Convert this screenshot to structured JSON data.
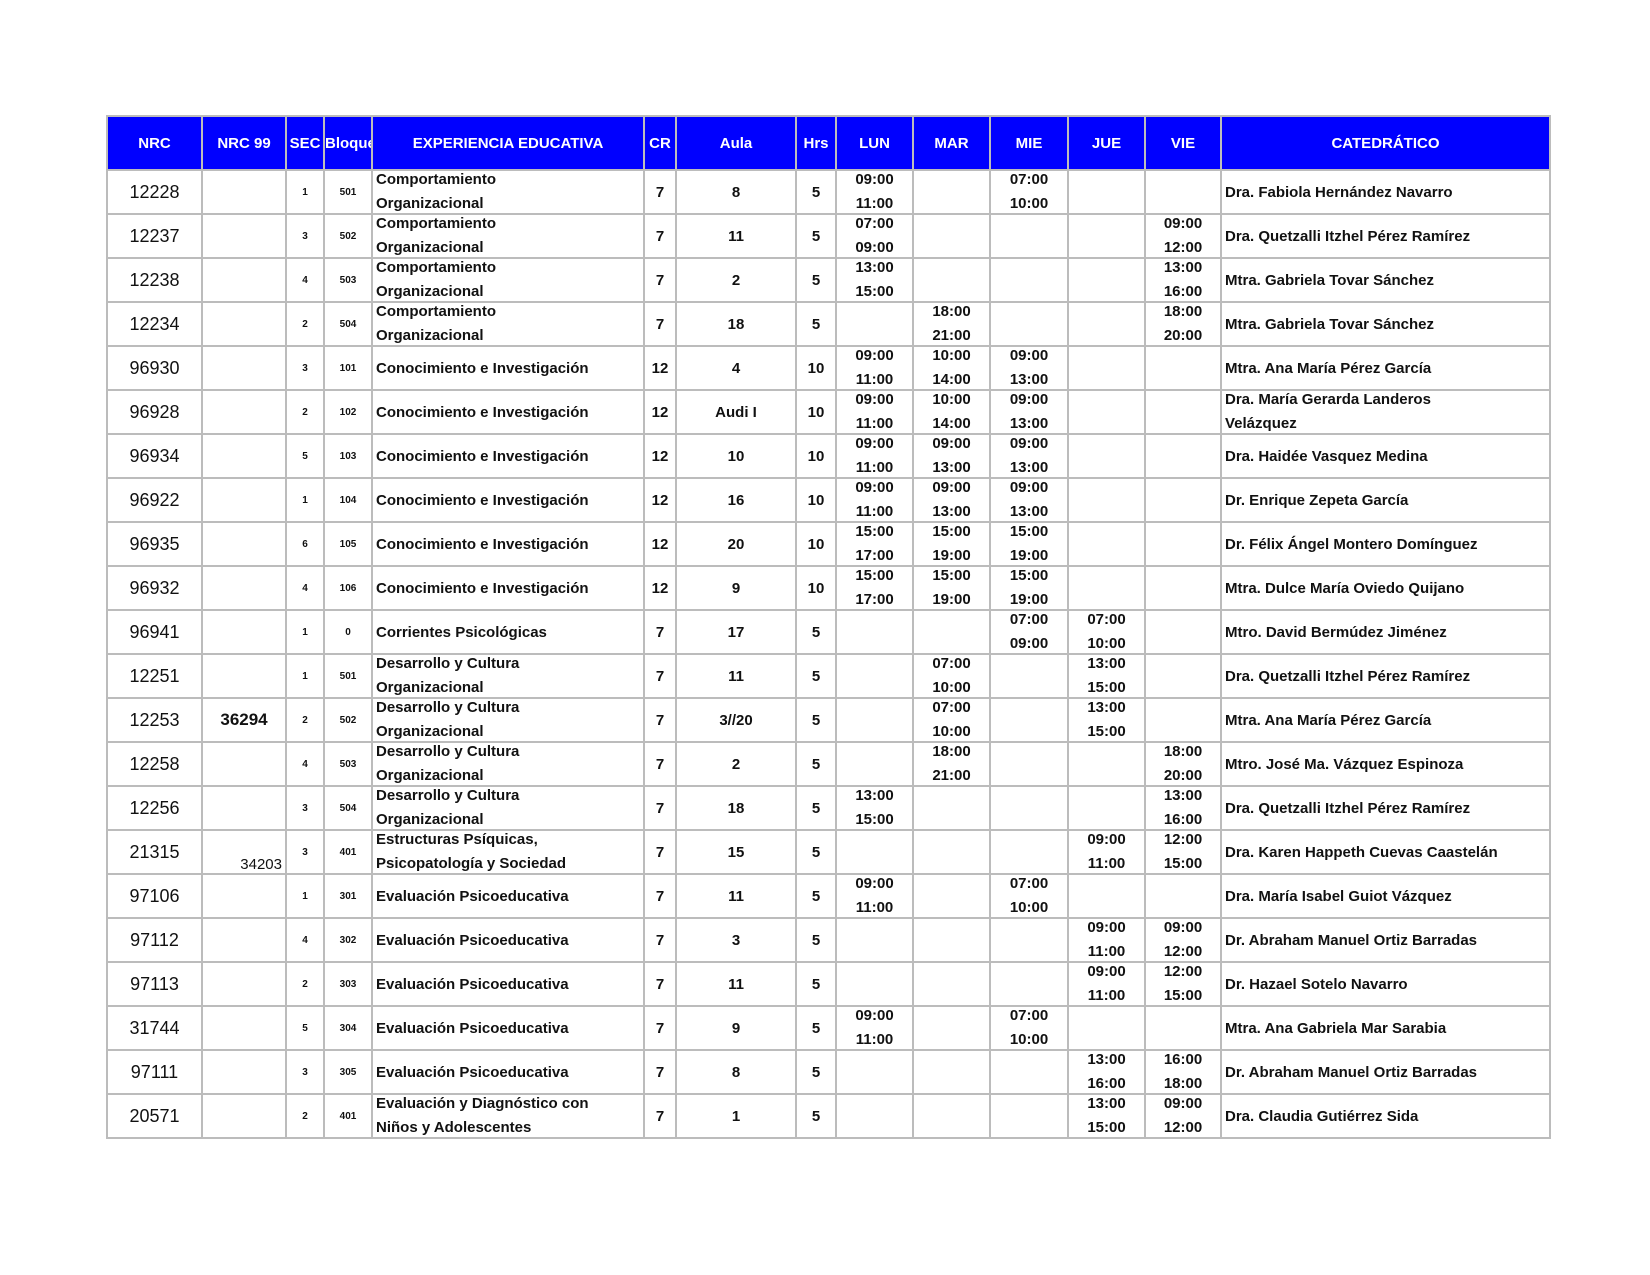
{
  "header": [
    "NRC",
    "NRC 99",
    "SEC",
    "Bloque",
    "EXPERIENCIA EDUCATIVA",
    "CR",
    "Aula",
    "Hrs",
    "LUN",
    "MAR",
    "MIE",
    "JUE",
    "VIE",
    "CATEDRÁTICO"
  ],
  "colors": {
    "header_bg": "#0000ff",
    "header_text": "#ffffff",
    "border": "#bcbcbc"
  },
  "rows": [
    {
      "nrc": "12228",
      "nrc99": "",
      "sec": "1",
      "bloque": "501",
      "exp": [
        "Comportamiento",
        "Organizacional"
      ],
      "cr": "7",
      "aula": "8",
      "hrs": "5",
      "lun": [
        "09:00",
        "11:00"
      ],
      "mar": [],
      "mie": [
        "07:00",
        "10:00"
      ],
      "jue": [],
      "vie": [],
      "cat": [
        "Dra. Fabiola Hernández Navarro"
      ]
    },
    {
      "nrc": "12237",
      "nrc99": "",
      "sec": "3",
      "bloque": "502",
      "exp": [
        "Comportamiento",
        "Organizacional"
      ],
      "cr": "7",
      "aula": "11",
      "hrs": "5",
      "lun": [
        "07:00",
        "09:00"
      ],
      "mar": [],
      "mie": [],
      "jue": [],
      "vie": [
        "09:00",
        "12:00"
      ],
      "cat": [
        "Dra. Quetzalli Itzhel Pérez Ramírez"
      ]
    },
    {
      "nrc": "12238",
      "nrc99": "",
      "sec": "4",
      "bloque": "503",
      "exp": [
        "Comportamiento",
        "Organizacional"
      ],
      "cr": "7",
      "aula": "2",
      "hrs": "5",
      "lun": [
        "13:00",
        "15:00"
      ],
      "mar": [],
      "mie": [],
      "jue": [],
      "vie": [
        "13:00",
        "16:00"
      ],
      "cat": [
        "Mtra. Gabriela Tovar Sánchez"
      ]
    },
    {
      "nrc": "12234",
      "nrc99": "",
      "sec": "2",
      "bloque": "504",
      "exp": [
        "Comportamiento",
        "Organizacional"
      ],
      "cr": "7",
      "aula": "18",
      "hrs": "5",
      "lun": [],
      "mar": [
        "18:00",
        "21:00"
      ],
      "mie": [],
      "jue": [],
      "vie": [
        "18:00",
        "20:00"
      ],
      "cat": [
        "Mtra. Gabriela Tovar Sánchez"
      ]
    },
    {
      "nrc": "96930",
      "nrc99": "",
      "sec": "3",
      "bloque": "101",
      "exp": [
        "Conocimiento e Investigación"
      ],
      "cr": "12",
      "aula": "4",
      "hrs": "10",
      "lun": [
        "09:00",
        "11:00"
      ],
      "mar": [
        "10:00",
        "14:00"
      ],
      "mie": [
        "09:00",
        "13:00"
      ],
      "jue": [],
      "vie": [],
      "cat": [
        "Mtra. Ana María Pérez García"
      ]
    },
    {
      "nrc": "96928",
      "nrc99": "",
      "sec": "2",
      "bloque": "102",
      "exp": [
        "Conocimiento e Investigación"
      ],
      "cr": "12",
      "aula": "Audi I",
      "hrs": "10",
      "lun": [
        "09:00",
        "11:00"
      ],
      "mar": [
        "10:00",
        "14:00"
      ],
      "mie": [
        "09:00",
        "13:00"
      ],
      "jue": [],
      "vie": [],
      "cat": [
        "Dra. María Gerarda Landeros",
        "Velázquez"
      ]
    },
    {
      "nrc": "96934",
      "nrc99": "",
      "sec": "5",
      "bloque": "103",
      "exp": [
        "Conocimiento e Investigación"
      ],
      "cr": "12",
      "aula": "10",
      "hrs": "10",
      "lun": [
        "09:00",
        "11:00"
      ],
      "mar": [
        "09:00",
        "13:00"
      ],
      "mie": [
        "09:00",
        "13:00"
      ],
      "jue": [],
      "vie": [],
      "cat": [
        "Dra. Haidée Vasquez Medina"
      ]
    },
    {
      "nrc": "96922",
      "nrc99": "",
      "sec": "1",
      "bloque": "104",
      "exp": [
        "Conocimiento e Investigación"
      ],
      "cr": "12",
      "aula": "16",
      "hrs": "10",
      "lun": [
        "09:00",
        "11:00"
      ],
      "mar": [
        "09:00",
        "13:00"
      ],
      "mie": [
        "09:00",
        "13:00"
      ],
      "jue": [],
      "vie": [],
      "cat": [
        "Dr. Enrique Zepeta García"
      ]
    },
    {
      "nrc": "96935",
      "nrc99": "",
      "sec": "6",
      "bloque": "105",
      "exp": [
        "Conocimiento e Investigación"
      ],
      "cr": "12",
      "aula": "20",
      "hrs": "10",
      "lun": [
        "15:00",
        "17:00"
      ],
      "mar": [
        "15:00",
        "19:00"
      ],
      "mie": [
        "15:00",
        "19:00"
      ],
      "jue": [],
      "vie": [],
      "cat": [
        "Dr. Félix Ángel Montero Domínguez"
      ]
    },
    {
      "nrc": "96932",
      "nrc99": "",
      "sec": "4",
      "bloque": "106",
      "exp": [
        "Conocimiento e Investigación"
      ],
      "cr": "12",
      "aula": "9",
      "hrs": "10",
      "lun": [
        "15:00",
        "17:00"
      ],
      "mar": [
        "15:00",
        "19:00"
      ],
      "mie": [
        "15:00",
        "19:00"
      ],
      "jue": [],
      "vie": [],
      "cat": [
        "Mtra. Dulce María Oviedo Quijano"
      ]
    },
    {
      "nrc": "96941",
      "nrc99": "",
      "sec": "1",
      "bloque": "0",
      "exp": [
        "Corrientes Psicológicas"
      ],
      "cr": "7",
      "aula": "17",
      "hrs": "5",
      "lun": [],
      "mar": [],
      "mie": [
        "07:00",
        "09:00"
      ],
      "jue": [
        "07:00",
        "10:00"
      ],
      "vie": [],
      "cat": [
        "Mtro. David Bermúdez Jiménez"
      ]
    },
    {
      "nrc": "12251",
      "nrc99": "",
      "sec": "1",
      "bloque": "501",
      "exp": [
        "Desarrollo y Cultura",
        "Organizacional"
      ],
      "cr": "7",
      "aula": "11",
      "hrs": "5",
      "lun": [],
      "mar": [
        "07:00",
        "10:00"
      ],
      "mie": [],
      "jue": [
        "13:00",
        "15:00"
      ],
      "vie": [],
      "cat": [
        "Dra. Quetzalli Itzhel Pérez Ramírez"
      ]
    },
    {
      "nrc": "12253",
      "nrc99": "36294",
      "sec": "2",
      "bloque": "502",
      "exp": [
        "Desarrollo y Cultura",
        "Organizacional"
      ],
      "cr": "7",
      "aula": "3//20",
      "hrs": "5",
      "lun": [],
      "mar": [
        "07:00",
        "10:00"
      ],
      "mie": [],
      "jue": [
        "13:00",
        "15:00"
      ],
      "vie": [],
      "cat": [
        "Mtra. Ana María Pérez García"
      ]
    },
    {
      "nrc": "12258",
      "nrc99": "",
      "sec": "4",
      "bloque": "503",
      "exp": [
        "Desarrollo y Cultura",
        "Organizacional"
      ],
      "cr": "7",
      "aula": "2",
      "hrs": "5",
      "lun": [],
      "mar": [
        "18:00",
        "21:00"
      ],
      "mie": [],
      "jue": [],
      "vie": [
        "18:00",
        "20:00"
      ],
      "cat": [
        "Mtro. José Ma. Vázquez Espinoza"
      ]
    },
    {
      "nrc": "12256",
      "nrc99": "",
      "sec": "3",
      "bloque": "504",
      "exp": [
        "Desarrollo y Cultura",
        "Organizacional"
      ],
      "cr": "7",
      "aula": "18",
      "hrs": "5",
      "lun": [
        "13:00",
        "15:00"
      ],
      "mar": [],
      "mie": [],
      "jue": [],
      "vie": [
        "13:00",
        "16:00"
      ],
      "cat": [
        "Dra. Quetzalli Itzhel Pérez Ramírez"
      ]
    },
    {
      "nrc": "21315",
      "nrc99": "34203",
      "sec": "3",
      "bloque": "401",
      "exp": [
        "Estructuras Psíquicas,",
        "Psicopatología y Sociedad"
      ],
      "cr": "7",
      "aula": "15",
      "hrs": "5",
      "lun": [],
      "mar": [],
      "mie": [],
      "jue": [
        "09:00",
        "11:00"
      ],
      "vie": [
        "12:00",
        "15:00"
      ],
      "cat": [
        "Dra. Karen Happeth Cuevas Caastelán"
      ]
    },
    {
      "nrc": "97106",
      "nrc99": "",
      "sec": "1",
      "bloque": "301",
      "exp": [
        "Evaluación Psicoeducativa"
      ],
      "cr": "7",
      "aula": "11",
      "hrs": "5",
      "lun": [
        "09:00",
        "11:00"
      ],
      "mar": [],
      "mie": [
        "07:00",
        "10:00"
      ],
      "jue": [],
      "vie": [],
      "cat": [
        "Dra. María Isabel Guiot Vázquez"
      ]
    },
    {
      "nrc": "97112",
      "nrc99": "",
      "sec": "4",
      "bloque": "302",
      "exp": [
        "Evaluación Psicoeducativa"
      ],
      "cr": "7",
      "aula": "3",
      "hrs": "5",
      "lun": [],
      "mar": [],
      "mie": [],
      "jue": [
        "09:00",
        "11:00"
      ],
      "vie": [
        "09:00",
        "12:00"
      ],
      "cat": [
        "Dr. Abraham Manuel Ortiz Barradas"
      ]
    },
    {
      "nrc": "97113",
      "nrc99": "",
      "sec": "2",
      "bloque": "303",
      "exp": [
        "Evaluación Psicoeducativa"
      ],
      "cr": "7",
      "aula": "11",
      "hrs": "5",
      "lun": [],
      "mar": [],
      "mie": [],
      "jue": [
        "09:00",
        "11:00"
      ],
      "vie": [
        "12:00",
        "15:00"
      ],
      "cat": [
        "Dr. Hazael Sotelo Navarro"
      ]
    },
    {
      "nrc": "31744",
      "nrc99": "",
      "sec": "5",
      "bloque": "304",
      "exp": [
        "Evaluación Psicoeducativa"
      ],
      "cr": "7",
      "aula": "9",
      "hrs": "5",
      "lun": [
        "09:00",
        "11:00"
      ],
      "mar": [],
      "mie": [
        "07:00",
        "10:00"
      ],
      "jue": [],
      "vie": [],
      "cat": [
        "Mtra.  Ana Gabriela Mar Sarabia"
      ]
    },
    {
      "nrc": "97111",
      "nrc99": "",
      "sec": "3",
      "bloque": "305",
      "exp": [
        "Evaluación Psicoeducativa"
      ],
      "cr": "7",
      "aula": "8",
      "hrs": "5",
      "lun": [],
      "mar": [],
      "mie": [],
      "jue": [
        "13:00",
        "16:00"
      ],
      "vie": [
        "16:00",
        "18:00"
      ],
      "cat": [
        "Dr. Abraham Manuel Ortiz Barradas"
      ]
    },
    {
      "nrc": "20571",
      "nrc99": "",
      "sec": "2",
      "bloque": "401",
      "exp": [
        "Evaluación y Diagnóstico con",
        "Niños y Adolescentes"
      ],
      "cr": "7",
      "aula": "1",
      "hrs": "5",
      "lun": [],
      "mar": [],
      "mie": [],
      "jue": [
        "13:00",
        "15:00"
      ],
      "vie": [
        "09:00",
        "12:00"
      ],
      "cat": [
        "Dra. Claudia Gutiérrez Sida"
      ]
    }
  ]
}
